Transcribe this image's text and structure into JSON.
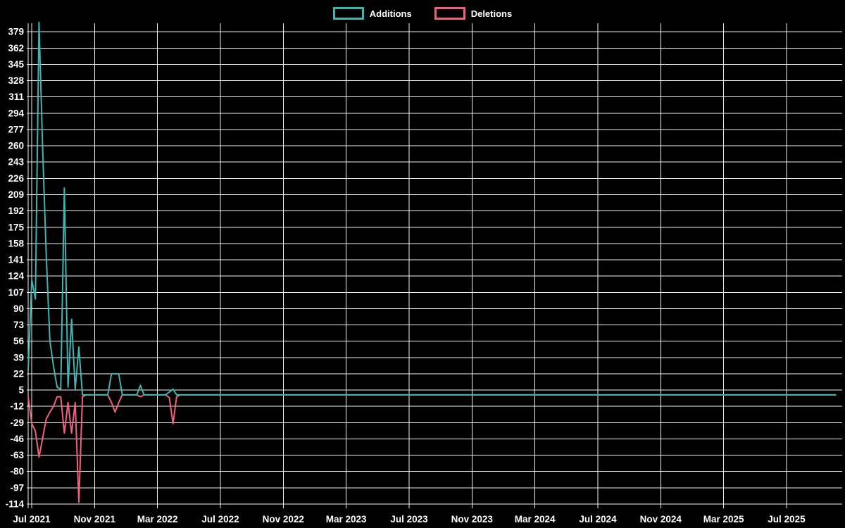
{
  "colors": {
    "background": "#000000",
    "grid": "#f0f0f0",
    "text": "#ffffff",
    "additions": "#40b3b3",
    "deletions": "#f2607c"
  },
  "chart_data": {
    "type": "line",
    "grid": true,
    "legend_position": "top",
    "x_axis": {
      "tick_labels": [
        "Jul 2021",
        "Nov 2021",
        "Mar 2022",
        "Jul 2022",
        "Nov 2022",
        "Mar 2023",
        "Jul 2023",
        "Nov 2023",
        "Mar 2024",
        "Jul 2024",
        "Nov 2024",
        "Mar 2025",
        "Jul 2025"
      ]
    },
    "y_axis": {
      "min": -114,
      "max": 379,
      "step": 17,
      "tick_labels": [
        "379",
        "362",
        "345",
        "328",
        "311",
        "294",
        "277",
        "260",
        "243",
        "226",
        "209",
        "192",
        "175",
        "158",
        "141",
        "124",
        "107",
        "90",
        "73",
        "56",
        "39",
        "22",
        "5",
        "-12",
        "-29",
        "-46",
        "-63",
        "-80",
        "-97",
        "-114"
      ]
    },
    "points_unit": "week",
    "total_points": 224,
    "pad_value": 0,
    "series": [
      {
        "name": "Additions",
        "color": "#40b3b3",
        "values": [
          25,
          120,
          100,
          389,
          256,
          145,
          56,
          30,
          8,
          6,
          216,
          8,
          79,
          6,
          50,
          0,
          0,
          0,
          0,
          0,
          0,
          0,
          0,
          22,
          22,
          22,
          0,
          0,
          0,
          0,
          0,
          10,
          0,
          0,
          0,
          0,
          0,
          0,
          0,
          3,
          6,
          0,
          0,
          0
        ]
      },
      {
        "name": "Deletions",
        "color": "#f2607c",
        "values": [
          -2,
          -30,
          -38,
          -65,
          -45,
          -25,
          -18,
          -12,
          -2,
          -2,
          -40,
          -8,
          -40,
          -8,
          -112,
          -2,
          0,
          0,
          0,
          0,
          0,
          0,
          0,
          -8,
          -18,
          -8,
          0,
          0,
          0,
          0,
          0,
          -2,
          0,
          0,
          0,
          0,
          0,
          0,
          0,
          -3,
          -30,
          -2,
          0,
          0,
          0
        ]
      }
    ]
  }
}
